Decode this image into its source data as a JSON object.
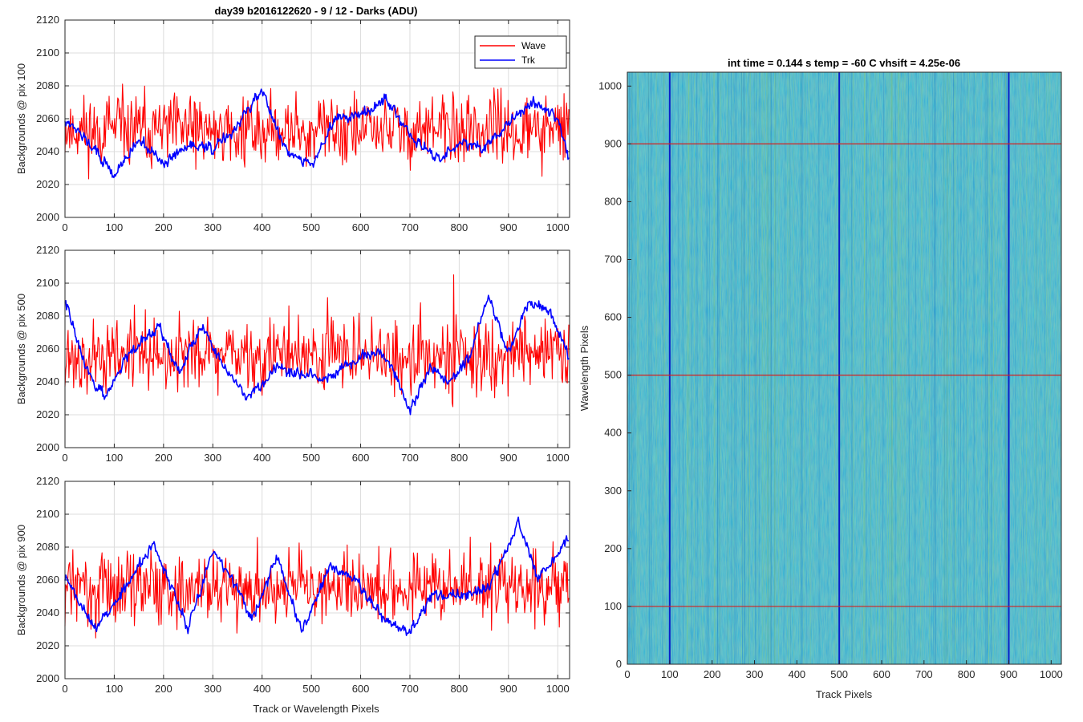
{
  "figure": {
    "title": "day39 b2016122620 - 9 / 12 - Darks (ADU)",
    "shared_xlabel": "Track or Wavelength Pixels"
  },
  "colors": {
    "wave": "#ff0000",
    "trk": "#0000ff",
    "grid": "#dcdcdc",
    "image_base": "#1a9bd0",
    "image_marker_h": "#d42020",
    "image_marker_v": "#0a20c8"
  },
  "legend": {
    "wave": "Wave",
    "trk": "Trk",
    "placement": "top-right"
  },
  "chart_data": [
    {
      "type": "line",
      "ylabel": "Backgrounds @ pix 100",
      "xlim": [
        0,
        1024
      ],
      "ylim": [
        2000,
        2120
      ],
      "xticks": [
        "0",
        "100",
        "200",
        "300",
        "400",
        "500",
        "600",
        "700",
        "800",
        "900",
        "1000"
      ],
      "yticks": [
        "2000",
        "2020",
        "2040",
        "2060",
        "2080",
        "2100",
        "2120"
      ],
      "grid": true,
      "series": [
        {
          "name": "Wave",
          "mean": 2053,
          "noise": 16,
          "seed": 11
        },
        {
          "name": "Trk",
          "mean": 2047,
          "noise": 4,
          "seed": 12,
          "trend": [
            [
              0,
              2060
            ],
            [
              50,
              2045
            ],
            [
              100,
              2025
            ],
            [
              150,
              2048
            ],
            [
              200,
              2032
            ],
            [
              250,
              2044
            ],
            [
              300,
              2042
            ],
            [
              350,
              2055
            ],
            [
              400,
              2078
            ],
            [
              450,
              2040
            ],
            [
              500,
              2032
            ],
            [
              550,
              2060
            ],
            [
              600,
              2062
            ],
            [
              650,
              2072
            ],
            [
              700,
              2050
            ],
            [
              750,
              2035
            ],
            [
              800,
              2045
            ],
            [
              850,
              2042
            ],
            [
              900,
              2058
            ],
            [
              950,
              2070
            ],
            [
              1000,
              2060
            ],
            [
              1024,
              2032
            ]
          ]
        }
      ]
    },
    {
      "type": "line",
      "ylabel": "Backgrounds @ pix 500",
      "xlim": [
        0,
        1024
      ],
      "ylim": [
        2000,
        2120
      ],
      "xticks": [
        "0",
        "100",
        "200",
        "300",
        "400",
        "500",
        "600",
        "700",
        "800",
        "900",
        "1000"
      ],
      "yticks": [
        "2000",
        "2020",
        "2040",
        "2060",
        "2080",
        "2100",
        "2120"
      ],
      "grid": true,
      "series": [
        {
          "name": "Wave",
          "mean": 2056,
          "noise": 16,
          "seed": 21
        },
        {
          "name": "Trk",
          "mean": 2055,
          "noise": 4,
          "seed": 22,
          "trend": [
            [
              0,
              2090
            ],
            [
              40,
              2050
            ],
            [
              80,
              2030
            ],
            [
              130,
              2058
            ],
            [
              190,
              2075
            ],
            [
              230,
              2045
            ],
            [
              280,
              2075
            ],
            [
              320,
              2050
            ],
            [
              370,
              2030
            ],
            [
              430,
              2048
            ],
            [
              480,
              2045
            ],
            [
              520,
              2040
            ],
            [
              580,
              2052
            ],
            [
              640,
              2060
            ],
            [
              670,
              2045
            ],
            [
              700,
              2022
            ],
            [
              740,
              2048
            ],
            [
              780,
              2040
            ],
            [
              820,
              2055
            ],
            [
              860,
              2092
            ],
            [
              900,
              2058
            ],
            [
              940,
              2088
            ],
            [
              980,
              2085
            ],
            [
              1024,
              2055
            ]
          ]
        }
      ]
    },
    {
      "type": "line",
      "ylabel": "Backgrounds @ pix 900",
      "xlim": [
        0,
        1024
      ],
      "ylim": [
        2000,
        2120
      ],
      "xticks": [
        "0",
        "100",
        "200",
        "300",
        "400",
        "500",
        "600",
        "700",
        "800",
        "900",
        "1000"
      ],
      "yticks": [
        "2000",
        "2020",
        "2040",
        "2060",
        "2080",
        "2100",
        "2120"
      ],
      "grid": true,
      "series": [
        {
          "name": "Wave",
          "mean": 2056,
          "noise": 16,
          "seed": 31
        },
        {
          "name": "Trk",
          "mean": 2055,
          "noise": 4,
          "seed": 32,
          "trend": [
            [
              0,
              2062
            ],
            [
              60,
              2030
            ],
            [
              110,
              2050
            ],
            [
              180,
              2082
            ],
            [
              250,
              2030
            ],
            [
              300,
              2078
            ],
            [
              350,
              2055
            ],
            [
              380,
              2035
            ],
            [
              430,
              2075
            ],
            [
              480,
              2028
            ],
            [
              540,
              2070
            ],
            [
              590,
              2060
            ],
            [
              650,
              2035
            ],
            [
              700,
              2028
            ],
            [
              750,
              2052
            ],
            [
              800,
              2050
            ],
            [
              860,
              2055
            ],
            [
              920,
              2095
            ],
            [
              960,
              2060
            ],
            [
              1024,
              2085
            ]
          ]
        }
      ]
    },
    {
      "type": "heatmap",
      "title": "int time = 0.144 s   temp = -60 C   vhsift = 4.25e-06",
      "xlabel": "Track Pixels",
      "ylabel": "Wavelength Pixels",
      "xlim": [
        0,
        1024
      ],
      "ylim": [
        0,
        1024
      ],
      "xticks": [
        "0",
        "100",
        "200",
        "300",
        "400",
        "500",
        "600",
        "700",
        "800",
        "900",
        "1000"
      ],
      "yticks": [
        "0",
        "100",
        "200",
        "300",
        "400",
        "500",
        "600",
        "700",
        "800",
        "900",
        "1000"
      ],
      "horizontal_markers": [
        100,
        500,
        900
      ],
      "vertical_markers": [
        100,
        500,
        900
      ]
    }
  ]
}
